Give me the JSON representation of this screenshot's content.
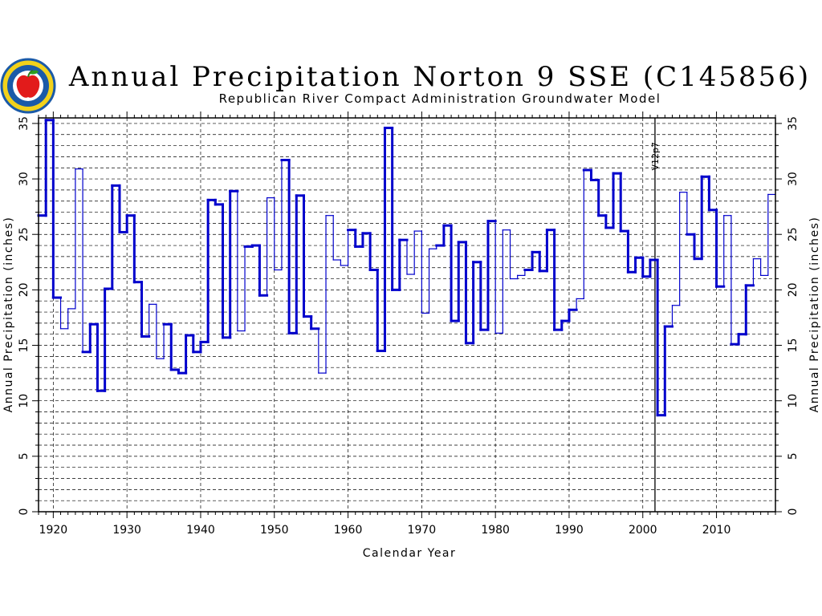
{
  "logo": {
    "icon": "apple-seal-logo"
  },
  "chart_data": {
    "type": "line",
    "style": "step",
    "title": "Annual Precipitation Norton 9 SSE (C145856)",
    "subtitle": "Republican River Compact Administration Groundwater Model",
    "xlabel": "Calendar Year",
    "ylabel": "Annual Precipitation (inches)",
    "ylabel_right": "Annual Precipitation (inches)",
    "xlim": [
      1918,
      2018
    ],
    "ylim": [
      0,
      35.5
    ],
    "xticks": [
      1920,
      1930,
      1940,
      1950,
      1960,
      1970,
      1980,
      1990,
      2000,
      2010
    ],
    "yticks": [
      0,
      5,
      10,
      15,
      20,
      25,
      30,
      35
    ],
    "grid": true,
    "line_color": "#0000cc",
    "annotations": [
      {
        "text": "V12p7",
        "x": 2001
      }
    ],
    "x": [
      1918,
      1919,
      1920,
      1921,
      1922,
      1923,
      1924,
      1925,
      1926,
      1927,
      1928,
      1929,
      1930,
      1931,
      1932,
      1933,
      1934,
      1935,
      1936,
      1937,
      1938,
      1939,
      1940,
      1941,
      1942,
      1943,
      1944,
      1945,
      1946,
      1947,
      1948,
      1949,
      1950,
      1951,
      1952,
      1953,
      1954,
      1955,
      1956,
      1957,
      1958,
      1959,
      1960,
      1961,
      1962,
      1963,
      1964,
      1965,
      1966,
      1967,
      1968,
      1969,
      1970,
      1971,
      1972,
      1973,
      1974,
      1975,
      1976,
      1977,
      1978,
      1979,
      1980,
      1981,
      1982,
      1983,
      1984,
      1985,
      1986,
      1987,
      1988,
      1989,
      1990,
      1991,
      1992,
      1993,
      1994,
      1995,
      1996,
      1997,
      1998,
      1999,
      2000,
      2001,
      2002,
      2003,
      2004,
      2005,
      2006,
      2007,
      2008,
      2009,
      2010,
      2011,
      2012,
      2013,
      2014,
      2015,
      2016,
      2017
    ],
    "values": [
      26.7,
      35.3,
      19.3,
      16.5,
      18.3,
      30.9,
      14.4,
      16.9,
      10.9,
      20.1,
      29.4,
      25.2,
      26.7,
      20.7,
      15.8,
      18.7,
      13.8,
      16.9,
      12.8,
      12.5,
      15.9,
      14.4,
      15.3,
      28.1,
      27.7,
      15.7,
      28.9,
      16.3,
      23.9,
      24.0,
      19.5,
      28.3,
      21.8,
      31.7,
      16.1,
      28.5,
      17.6,
      16.5,
      12.5,
      26.7,
      22.7,
      22.2,
      25.4,
      23.9,
      25.1,
      21.8,
      14.5,
      34.6,
      20.0,
      24.5,
      21.4,
      25.3,
      17.9,
      23.7,
      24.0,
      25.8,
      17.2,
      24.3,
      15.2,
      22.5,
      16.4,
      26.2,
      16.1,
      25.4,
      21.0,
      21.3,
      21.8,
      23.4,
      21.7,
      25.4,
      16.4,
      17.2,
      18.2,
      19.2,
      30.8,
      29.9,
      26.7,
      25.6,
      30.5,
      25.3,
      21.6,
      22.9,
      21.2,
      22.7,
      8.7,
      16.7,
      18.6,
      28.8,
      25.0,
      22.8,
      30.2,
      27.2,
      20.3,
      26.7,
      15.1,
      16.0,
      20.4,
      22.8,
      21.3,
      28.6
    ],
    "weight": [
      "thick",
      "thick",
      "thick",
      "thin",
      "thin",
      "thin",
      "thick",
      "thick",
      "thick",
      "thick",
      "thick",
      "thick",
      "thick",
      "thick",
      "thick",
      "thin",
      "thin",
      "thick",
      "thick",
      "thick",
      "thick",
      "thick",
      "thick",
      "thick",
      "thick",
      "thick",
      "thick",
      "thin",
      "thick",
      "thick",
      "thick",
      "thin",
      "thin",
      "thick",
      "thick",
      "thick",
      "thick",
      "thick",
      "thin",
      "thin",
      "thin",
      "thin",
      "thick",
      "thick",
      "thick",
      "thick",
      "thick",
      "thick",
      "thick",
      "thick",
      "thin",
      "thin",
      "thin",
      "thin",
      "thick",
      "thick",
      "thick",
      "thick",
      "thick",
      "thick",
      "thick",
      "thick",
      "thin",
      "thin",
      "thin",
      "thin",
      "thick",
      "thick",
      "thick",
      "thick",
      "thick",
      "thick",
      "thick",
      "thin",
      "thick",
      "thick",
      "thick",
      "thick",
      "thick",
      "thick",
      "thick",
      "thick",
      "thick",
      "thick",
      "thick",
      "thick",
      "thin",
      "thin",
      "thick",
      "thick",
      "thick",
      "thick",
      "thick",
      "thin",
      "thick",
      "thick",
      "thick",
      "thin",
      "thin",
      "thin"
    ]
  }
}
